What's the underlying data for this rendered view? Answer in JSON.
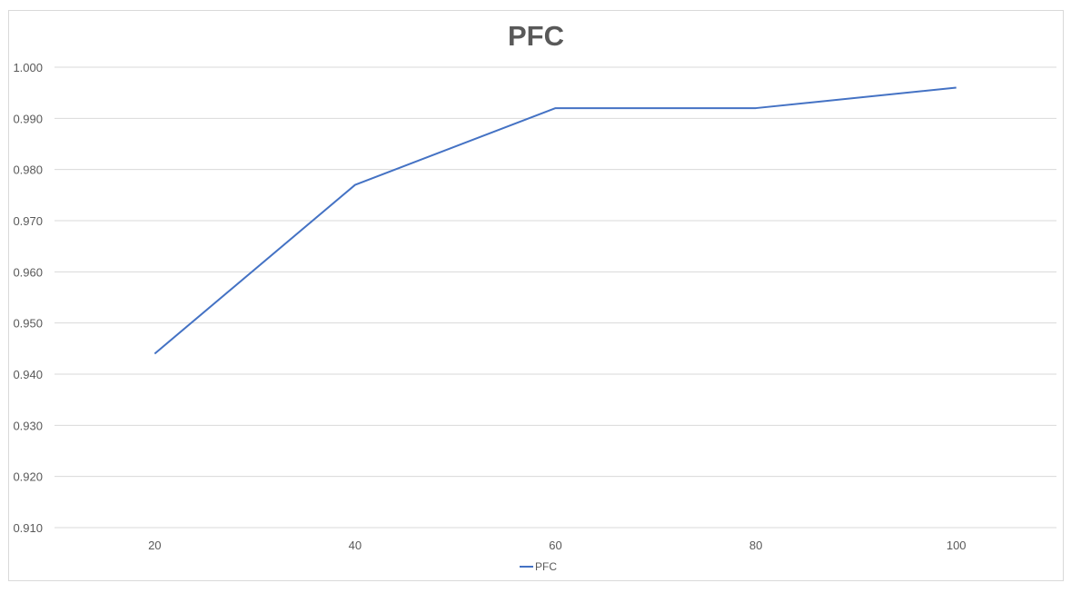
{
  "chart_data": {
    "type": "line",
    "title": "PFC",
    "xlabel": "",
    "ylabel": "",
    "categories": [
      "20",
      "40",
      "60",
      "80",
      "100"
    ],
    "series": [
      {
        "name": "PFC",
        "values": [
          0.944,
          0.977,
          0.992,
          0.992,
          0.996
        ],
        "color": "#4472c4"
      }
    ],
    "ylim": [
      0.91,
      1.0
    ],
    "yticks": [
      "0.910",
      "0.920",
      "0.930",
      "0.940",
      "0.950",
      "0.960",
      "0.970",
      "0.980",
      "0.990",
      "1.000"
    ],
    "grid": true,
    "legend_position": "bottom",
    "gridline_color": "#d9d9d9"
  }
}
